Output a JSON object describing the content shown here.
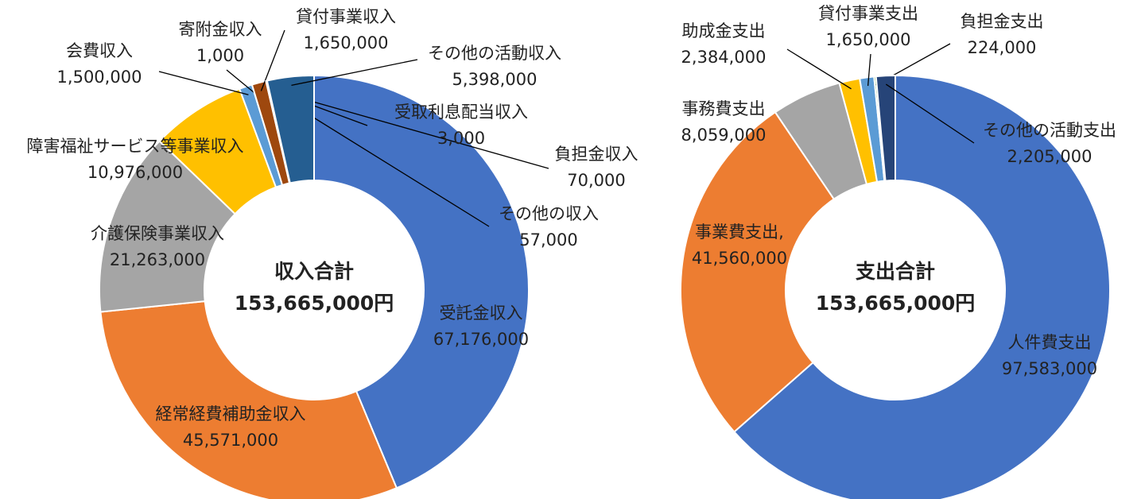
{
  "chart_data": [
    {
      "type": "pie",
      "center_title": "収入合計",
      "center_total": "153,665,000円",
      "categories": [
        "受託金収入",
        "経常経費補助金収入",
        "介護保険事業収入",
        "障害福祉サービス等事業収入",
        "会費収入",
        "寄附金収入",
        "貸付事業収入",
        "その他の収入",
        "負担金収入",
        "受取利息配当収入",
        "その他の活動収入"
      ],
      "values": [
        67176000,
        45571000,
        21263000,
        10976000,
        1500000,
        1000,
        1650000,
        57000,
        70000,
        3000,
        5398000
      ],
      "value_labels": [
        "67,176,000",
        "45,571,000",
        "21,263,000",
        "10,976,000",
        "1,500,000",
        "1,000",
        "1,650,000",
        "57,000",
        "70,000",
        "3,000",
        "5,398,000"
      ],
      "colors": [
        "#4472c4",
        "#ed7d31",
        "#a5a5a5",
        "#ffc000",
        "#5b9bd5",
        "#70ad47",
        "#9e480e",
        "#636363",
        "#997300",
        "#264478",
        "#255e91"
      ]
    },
    {
      "type": "pie",
      "center_title": "支出合計",
      "center_total": "153,665,000円",
      "categories": [
        "人件費支出",
        "事業費支出,",
        "事務費支出",
        "助成金支出",
        "貸付事業支出",
        "負担金支出",
        "その他の活動支出"
      ],
      "values": [
        97583000,
        41560000,
        8059000,
        2384000,
        1650000,
        224000,
        2205000
      ],
      "value_labels": [
        "97,583,000",
        "41,560,000",
        "8,059,000",
        "2,384,000",
        "1,650,000",
        "224,000",
        "2,205,000"
      ],
      "colors": [
        "#4472c4",
        "#ed7d31",
        "#a5a5a5",
        "#ffc000",
        "#5b9bd5",
        "#70ad47",
        "#264478"
      ]
    }
  ]
}
